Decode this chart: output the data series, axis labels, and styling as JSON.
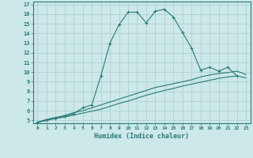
{
  "xlabel": "Humidex (Indice chaleur)",
  "bg_color": "#cce8e8",
  "line_color": "#2a7a7a",
  "grid_color": "#aacece",
  "xlim": [
    -0.5,
    23.5
  ],
  "ylim": [
    4.7,
    17.3
  ],
  "xticks": [
    0,
    1,
    2,
    3,
    4,
    5,
    6,
    7,
    8,
    9,
    10,
    11,
    12,
    13,
    14,
    15,
    16,
    17,
    18,
    19,
    20,
    21,
    22,
    23
  ],
  "yticks": [
    5,
    6,
    7,
    8,
    9,
    10,
    11,
    12,
    13,
    14,
    15,
    16,
    17
  ],
  "curve1_x": [
    0,
    1,
    2,
    3,
    4,
    5,
    6,
    7,
    8,
    9,
    10,
    11,
    12,
    13,
    14,
    15,
    16,
    17,
    18,
    19,
    20,
    21,
    22,
    23
  ],
  "curve1_y": [
    4.8,
    5.0,
    5.2,
    5.4,
    5.7,
    6.3,
    6.6,
    9.6,
    13.0,
    14.9,
    16.2,
    16.2,
    15.1,
    16.3,
    16.5,
    15.7,
    14.1,
    12.5,
    10.2,
    10.5,
    10.1,
    10.5,
    9.6,
    null
  ],
  "curve2_x": [
    0,
    1,
    2,
    3,
    4,
    5,
    6,
    7,
    8,
    9,
    10,
    11,
    12,
    13,
    14,
    15,
    16,
    17,
    18,
    19,
    20,
    21,
    22,
    23
  ],
  "curve2_y": [
    4.8,
    5.1,
    5.3,
    5.5,
    5.8,
    6.0,
    6.3,
    6.6,
    6.9,
    7.2,
    7.5,
    7.8,
    8.1,
    8.4,
    8.6,
    8.8,
    9.0,
    9.2,
    9.5,
    9.7,
    9.85,
    9.95,
    10.1,
    9.75
  ],
  "curve3_x": [
    0,
    1,
    2,
    3,
    4,
    5,
    6,
    7,
    8,
    9,
    10,
    11,
    12,
    13,
    14,
    15,
    16,
    17,
    18,
    19,
    20,
    21,
    22,
    23
  ],
  "curve3_y": [
    4.8,
    5.0,
    5.2,
    5.35,
    5.55,
    5.75,
    5.95,
    6.15,
    6.45,
    6.75,
    7.0,
    7.3,
    7.6,
    7.85,
    8.1,
    8.3,
    8.55,
    8.75,
    8.95,
    9.15,
    9.35,
    9.5,
    9.6,
    9.4
  ]
}
